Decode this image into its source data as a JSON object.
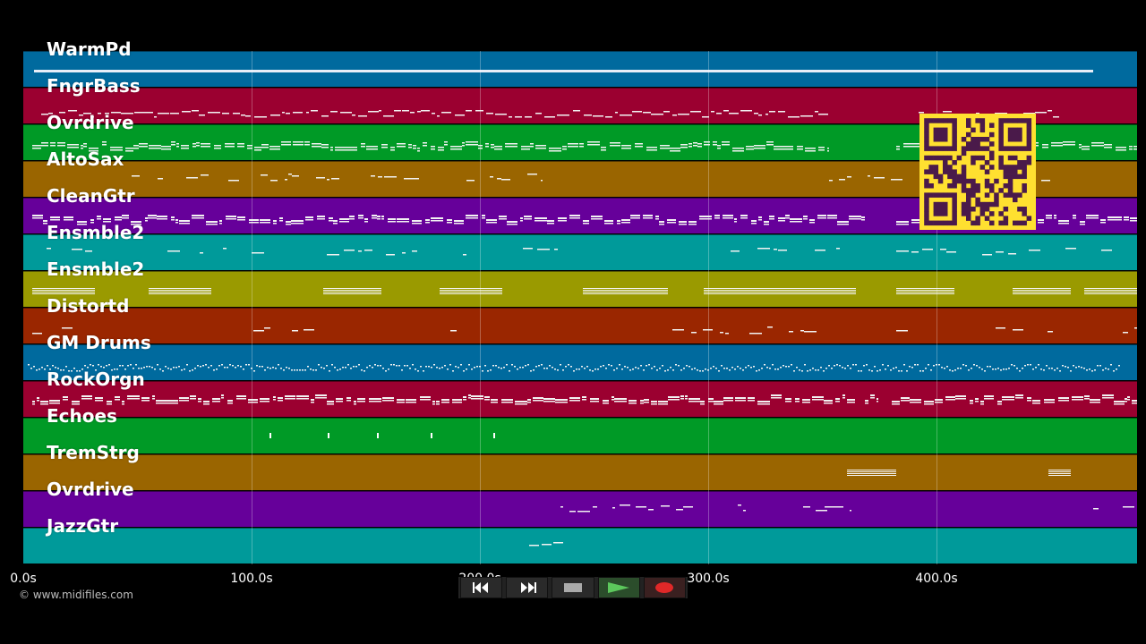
{
  "tracks": [
    {
      "name": "WarmPd",
      "color": "#006a9e"
    },
    {
      "name": "FngrBass",
      "color": "#9b0030"
    },
    {
      "name": "Ovrdrive",
      "color": "#009a26"
    },
    {
      "name": "AltoSax",
      "color": "#9a6500"
    },
    {
      "name": "CleanGtr",
      "color": "#66009a"
    },
    {
      "name": "Ensmble2",
      "color": "#009a9a"
    },
    {
      "name": "Ensmble2",
      "color": "#9a9a00"
    },
    {
      "name": "Distortd",
      "color": "#9a2600"
    },
    {
      "name": "GM Drums",
      "color": "#006a9e"
    },
    {
      "name": "RockOrgn",
      "color": "#9b0030"
    },
    {
      "name": "Echoes",
      "color": "#009a26"
    },
    {
      "name": "TremStrg",
      "color": "#9a6500"
    },
    {
      "name": "Ovrdrive",
      "color": "#66009a"
    },
    {
      "name": "JazzGtr",
      "color": "#009a9a"
    }
  ],
  "timeline": {
    "ticks": [
      {
        "value": 0,
        "label": "0.0s"
      },
      {
        "value": 100,
        "label": "100.0s"
      },
      {
        "value": 200,
        "label": "200.0s"
      },
      {
        "value": 300,
        "label": "300.0s"
      },
      {
        "value": 400,
        "label": "400.0s"
      }
    ],
    "max_seconds": 488
  },
  "copyright": "© www.midifiles.com",
  "qr": {
    "color": "#ffe030",
    "fg": "#4a1a4a"
  },
  "transport": {
    "buttons": [
      {
        "name": "rewind-button",
        "icon": "rewind-icon"
      },
      {
        "name": "fast-forward-button",
        "icon": "fast-forward-icon"
      },
      {
        "name": "stop-button",
        "icon": "stop-icon"
      },
      {
        "name": "play-button",
        "icon": "play-icon"
      },
      {
        "name": "record-button",
        "icon": "record-icon"
      }
    ]
  }
}
